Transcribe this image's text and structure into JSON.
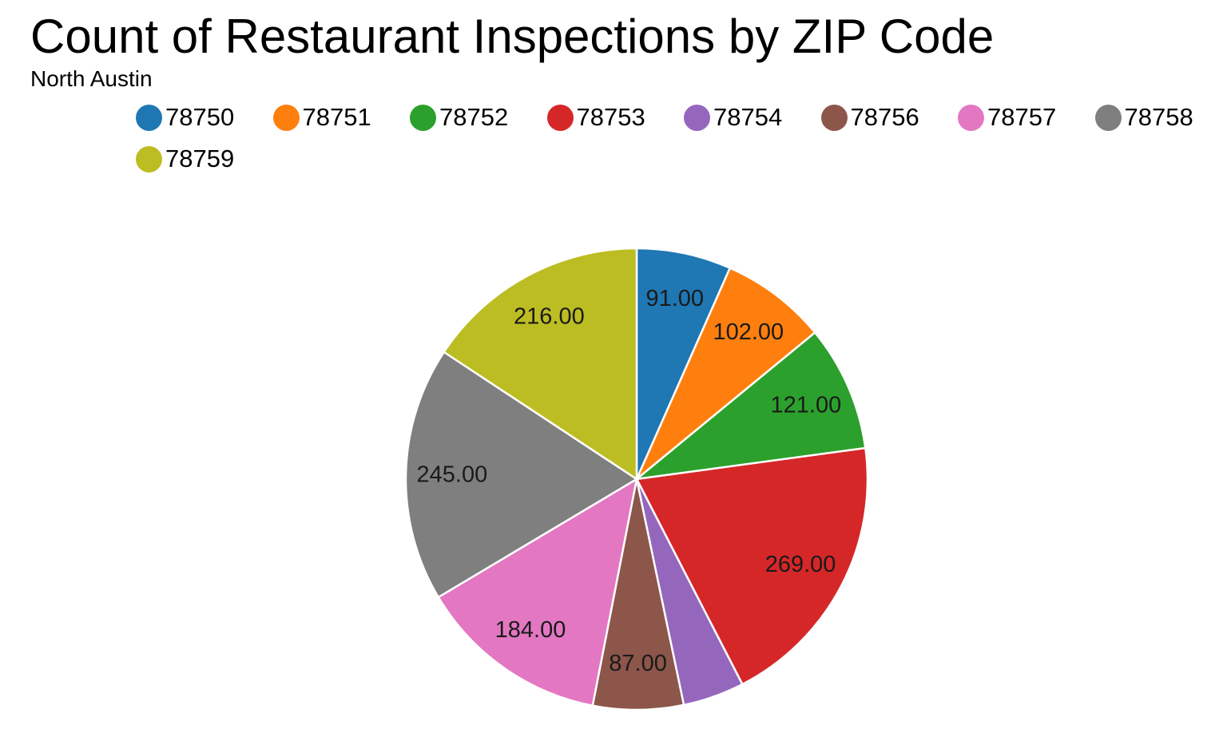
{
  "chart_data": {
    "type": "pie",
    "title": "Count of Restaurant Inspections by ZIP Code",
    "subtitle": "North Austin",
    "legend_position": "top",
    "categories": [
      "78750",
      "78751",
      "78752",
      "78753",
      "78754",
      "78756",
      "78757",
      "78758",
      "78759"
    ],
    "values": [
      91,
      102,
      121,
      269,
      59,
      87,
      184,
      245,
      216
    ],
    "data_labels": [
      "91.00",
      "102.00",
      "121.00",
      "269.00",
      "",
      "87.00",
      "184.00",
      "245.00",
      "216.00"
    ],
    "colors": [
      "#1f77b4",
      "#ff7f0e",
      "#2ca02c",
      "#d62728",
      "#9467bd",
      "#8c564b",
      "#e377c2",
      "#7f7f7f",
      "#bcbd22"
    ]
  }
}
